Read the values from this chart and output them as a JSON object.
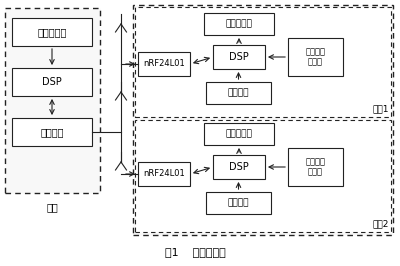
{
  "title": "图1    系统结构图",
  "background_color": "#ffffff",
  "main_station_label": "主站",
  "sub1_label": "分站1",
  "sub2_label": "分站2",
  "main_display": "数码管显示",
  "main_dsp": "DSP",
  "main_wireless": "无线通信",
  "nrf1": "nRF24L01",
  "dsp1": "DSP",
  "display1": "数码管显示",
  "sensor1": "温度光照\n传感器",
  "code1": "编号预置",
  "nrf2": "nRF24L01",
  "dsp2": "DSP",
  "display2": "数码管显示",
  "sensor2": "温度光照\n传感器",
  "code2": "编号预置"
}
